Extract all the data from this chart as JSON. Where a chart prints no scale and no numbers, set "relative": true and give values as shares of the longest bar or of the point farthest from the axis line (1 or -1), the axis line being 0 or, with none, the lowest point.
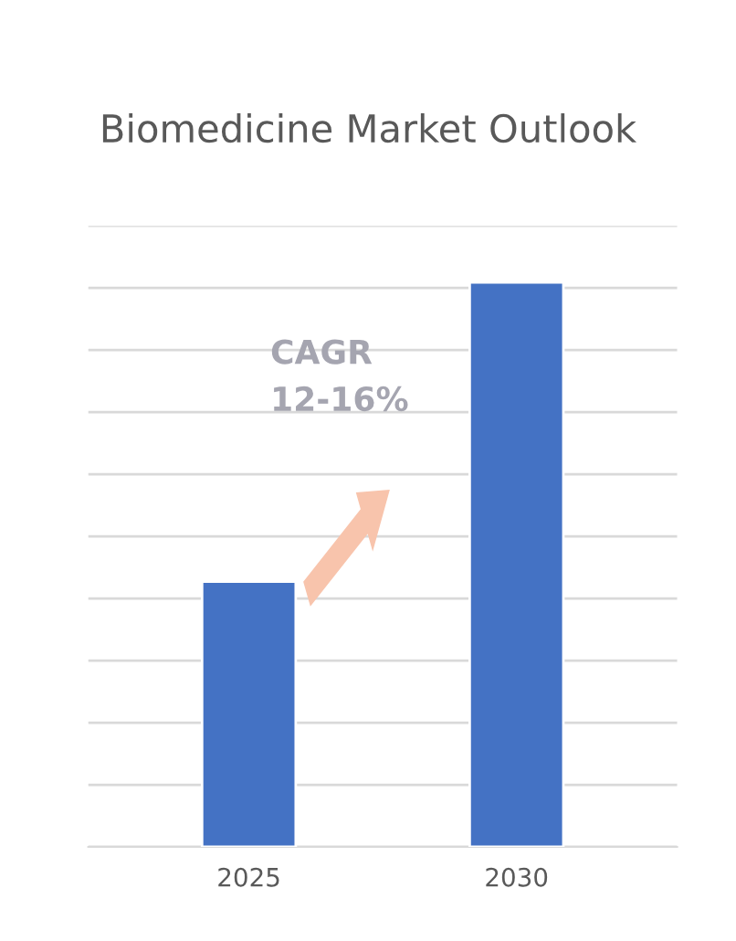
{
  "chart_data": {
    "type": "bar",
    "title": "Biomedicine Market Outlook",
    "categories": [
      "2025",
      "2030"
    ],
    "values": [
      0.47,
      1
    ],
    "color": "#4472c4",
    "relative": true,
    "grid": "y",
    "annotations": [
      "CAGR\n12-16%"
    ]
  }
}
